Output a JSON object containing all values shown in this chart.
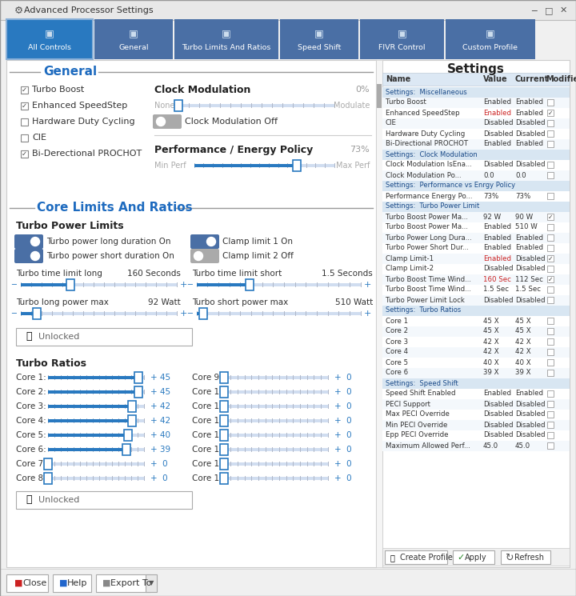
{
  "title": "Advanced Processor Settings",
  "bg_color": "#f0f0f0",
  "panel_bg": "#ffffff",
  "dark_blue": "#3c5a8a",
  "tab_blue": "#4a6fa5",
  "active_tab": "#2979c0",
  "header_blue": "#1e6bbf",
  "text_dark": "#222222",
  "text_gray": "#666666",
  "border_color": "#c8c8c8",
  "slider_blue": "#2979c0",
  "toggle_on": "#4a6fa5",
  "toggle_off": "#cccccc",
  "section_title_color": "#1e6bbf",
  "tabs": [
    "All Controls",
    "General",
    "Turbo Limits And Ratios",
    "Speed Shift",
    "FIVR Control",
    "Custom Profile"
  ],
  "right_panel_title": "Settings",
  "right_col_headers": [
    "Name",
    "Value",
    "Current",
    "Modified"
  ],
  "right_sections": [
    {
      "header": "Settings:  Miscellaneous",
      "rows": [
        [
          "Turbo Boost",
          "Enabled",
          "Enabled",
          false
        ],
        [
          "Enhanced SpeedStep",
          "Enabled",
          "Enabled",
          true
        ],
        [
          "CIE",
          "Disabled",
          "Disabled",
          false
        ],
        [
          "Hardware Duty Cycling",
          "Disabled",
          "Disabled",
          false
        ],
        [
          "Bi-Directional PROCHOT",
          "Enabled",
          "Enabled",
          false
        ]
      ]
    },
    {
      "header": "Settings:  Clock Modulation",
      "rows": [
        [
          "Clock Modulation IsEna...",
          "Disabled",
          "Disabled",
          false
        ],
        [
          "Clock Modulation Po...",
          "0.0",
          "0.0",
          false
        ]
      ]
    },
    {
      "header": "Settings:  Performance vs Enrgy Policy",
      "rows": [
        [
          "Performance Energy Po...",
          "73%",
          "73%",
          false
        ]
      ]
    },
    {
      "header": "Settings:  Turbo Power Limit",
      "rows": [
        [
          "Turbo Boost Power Ma...",
          "92 W",
          "90 W",
          true
        ],
        [
          "Turbo Boost Power Ma...",
          "Enabled",
          "510 W",
          false
        ],
        [
          "Turbo Power Long Dura...",
          "Enabled",
          "Enabled",
          false
        ],
        [
          "Turbo Power Short Dur...",
          "Enabled",
          "Enabled",
          false
        ],
        [
          "Clamp Limit-1",
          "Enabled",
          "Disabled",
          true
        ],
        [
          "Clamp Limit-2",
          "Disabled",
          "Disabled",
          false
        ],
        [
          "Turbo Boost Time Wind...",
          "160 Sec",
          "112 Sec",
          true
        ],
        [
          "Turbo Boost Time Wind...",
          "1.5 Sec",
          "1.5 Sec",
          false
        ],
        [
          "Turbo Power Limit Lock",
          "Disabled",
          "Disabled",
          false
        ]
      ]
    },
    {
      "header": "Settings:  Turbo Ratios",
      "rows": [
        [
          "Core 1",
          "45 X",
          "45 X",
          false
        ],
        [
          "Core 2",
          "45 X",
          "45 X",
          false
        ],
        [
          "Core 3",
          "42 X",
          "42 X",
          false
        ],
        [
          "Core 4",
          "42 X",
          "42 X",
          false
        ],
        [
          "Core 5",
          "40 X",
          "40 X",
          false
        ],
        [
          "Core 6",
          "39 X",
          "39 X",
          false
        ]
      ]
    },
    {
      "header": "Settings:  Speed Shift",
      "rows": [
        [
          "Speed Shift Enabled",
          "Enabled",
          "Enabled",
          false
        ],
        [
          "PECI Support",
          "Disabled",
          "Disabled",
          false
        ],
        [
          "Max PECI Override",
          "Disabled",
          "Disabled",
          false
        ],
        [
          "Min PECI Override",
          "Disabled",
          "Disabled",
          false
        ],
        [
          "Epp PECI Override",
          "Disabled",
          "Disabled",
          false
        ],
        [
          "Maximum Allowed Perf...",
          "45.0",
          "45.0",
          false
        ]
      ]
    }
  ]
}
